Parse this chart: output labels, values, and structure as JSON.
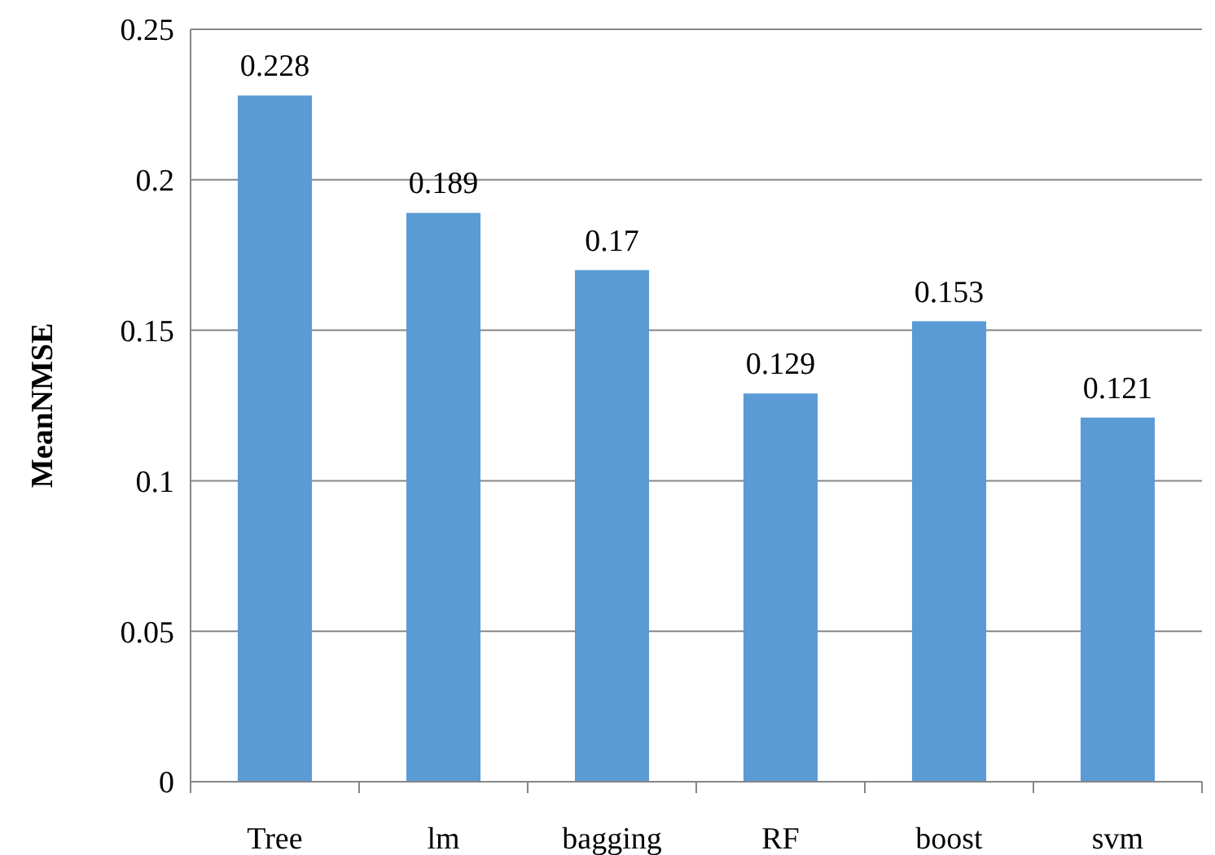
{
  "chart_data": {
    "type": "bar",
    "ylabel": "MeanNMSE",
    "categories": [
      "Tree",
      "lm",
      "bagging",
      "RF",
      "boost",
      "svm"
    ],
    "values": [
      0.228,
      0.189,
      0.17,
      0.129,
      0.153,
      0.121
    ],
    "color": "#5b9bd5",
    "ylim": [
      0,
      0.25
    ],
    "yticks": [
      0,
      0.05,
      0.1,
      0.15,
      0.2,
      0.25
    ],
    "grid": "y",
    "data_labels": true
  }
}
